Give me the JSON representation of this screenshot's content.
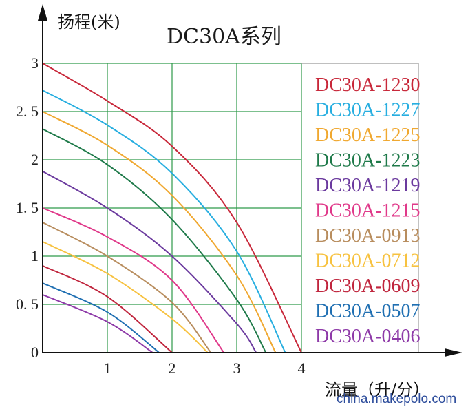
{
  "watermark": "china.makepolo.com",
  "chart_data": {
    "type": "line",
    "title": "DC30A系列",
    "xlabel": "流量（升/分）",
    "ylabel": "扬程(米)",
    "xlim": [
      0,
      4
    ],
    "ylim": [
      0,
      3
    ],
    "x_ticks": [
      "1",
      "2",
      "3",
      "4"
    ],
    "y_ticks": [
      "0",
      "0.5",
      "1",
      "1.5",
      "2",
      "2.5",
      "3"
    ],
    "grid": true,
    "legend_position": "right",
    "series": [
      {
        "name": "DC30A-1230",
        "color": "#c8283a",
        "x": [
          0,
          1,
          2,
          3,
          4
        ],
        "y": [
          3.0,
          2.61,
          2.14,
          1.35,
          0
        ]
      },
      {
        "name": "DC30A-1227",
        "color": "#27aee0",
        "x": [
          0,
          1,
          2,
          3,
          3.75
        ],
        "y": [
          2.72,
          2.36,
          1.86,
          1.05,
          0
        ]
      },
      {
        "name": "DC30A-1225",
        "color": "#f0a830",
        "x": [
          0,
          1,
          2,
          3,
          3.6
        ],
        "y": [
          2.5,
          2.15,
          1.63,
          0.8,
          0
        ]
      },
      {
        "name": "DC30A-1223",
        "color": "#1f7a4a",
        "x": [
          0,
          1,
          2,
          3,
          3.45
        ],
        "y": [
          2.32,
          1.95,
          1.38,
          0.55,
          0
        ]
      },
      {
        "name": "DC30A-1219",
        "color": "#6b3a9e",
        "x": [
          0,
          1,
          2,
          3,
          3.3
        ],
        "y": [
          1.88,
          1.5,
          1.0,
          0.3,
          0
        ]
      },
      {
        "name": "DC30A-1215",
        "color": "#e0398a",
        "x": [
          0,
          1,
          2,
          2.8
        ],
        "y": [
          1.5,
          1.2,
          0.75,
          0
        ]
      },
      {
        "name": "DC30A-0913",
        "color": "#b88d5e",
        "x": [
          0,
          1,
          2,
          2.6
        ],
        "y": [
          1.35,
          1.0,
          0.52,
          0
        ]
      },
      {
        "name": "DC30A-0712",
        "color": "#f7c240",
        "x": [
          0,
          1,
          2,
          2.55
        ],
        "y": [
          1.15,
          0.82,
          0.35,
          0
        ]
      },
      {
        "name": "DC30A-0609",
        "color": "#c0263e",
        "x": [
          0,
          1,
          2
        ],
        "y": [
          0.9,
          0.58,
          0
        ]
      },
      {
        "name": "DC30A-0507",
        "color": "#1f6fb2",
        "x": [
          0,
          1,
          1.8
        ],
        "y": [
          0.72,
          0.42,
          0
        ]
      },
      {
        "name": "DC30A-0406",
        "color": "#8e3aa8",
        "x": [
          0,
          1,
          1.7
        ],
        "y": [
          0.6,
          0.32,
          0
        ]
      }
    ]
  }
}
